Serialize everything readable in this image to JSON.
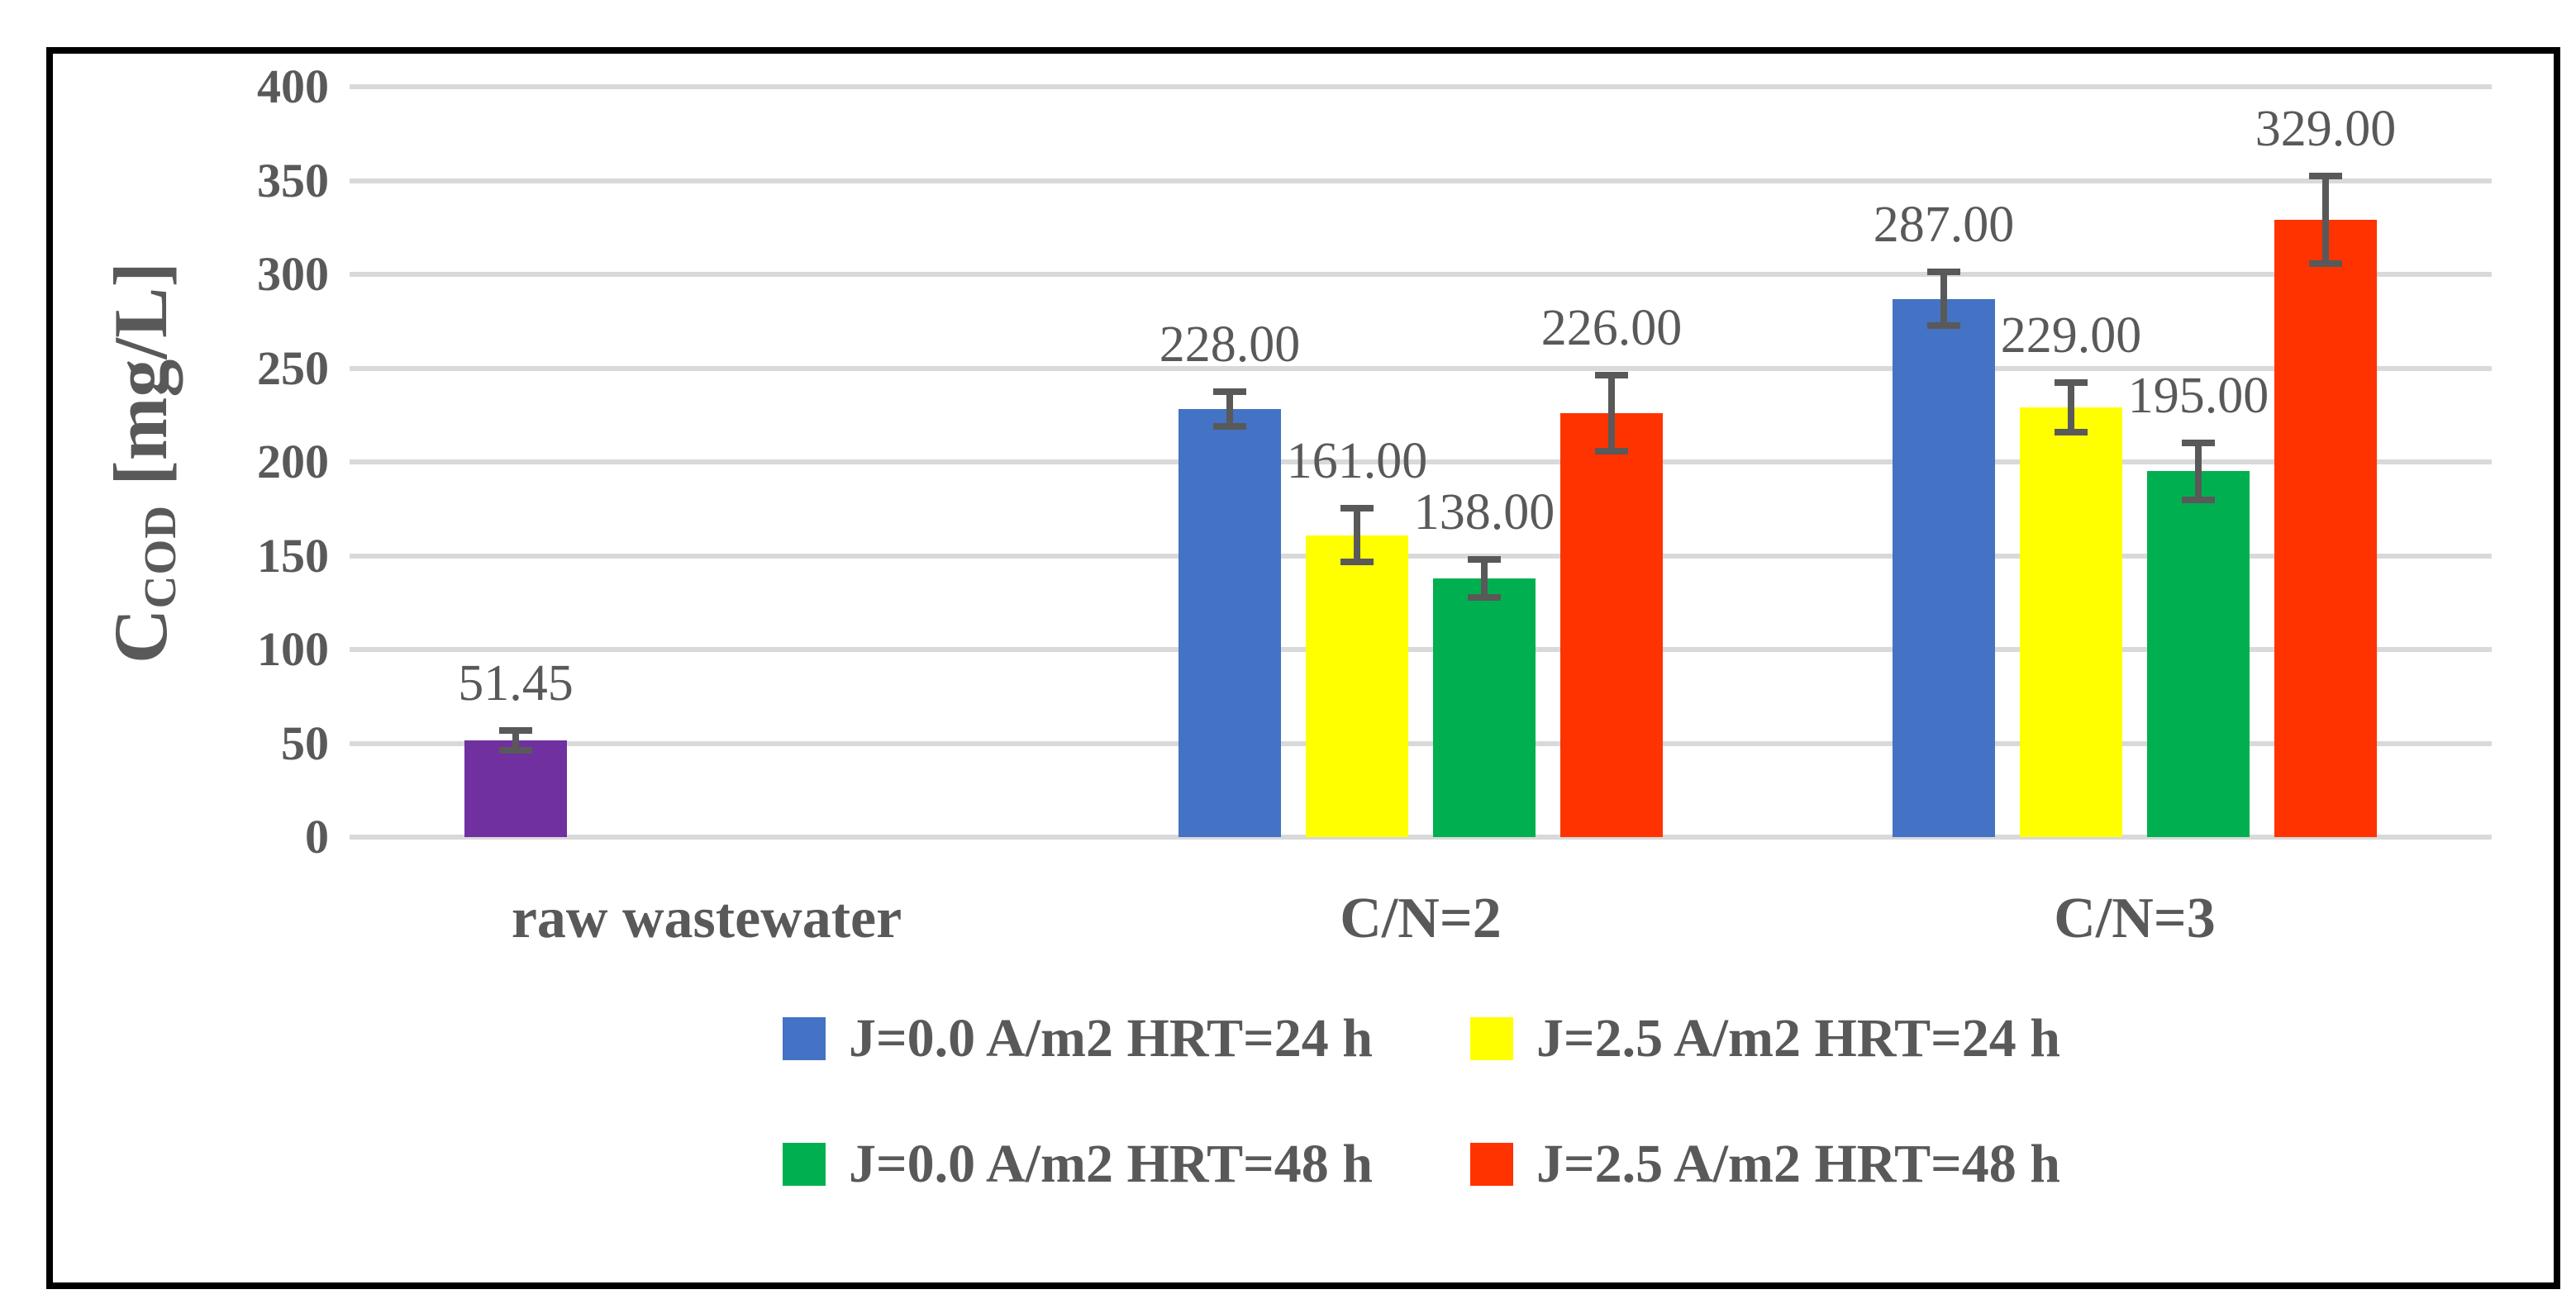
{
  "figure": {
    "background_color": "#FFFFFF",
    "frame_color": "#000000"
  },
  "chart_data": {
    "type": "bar",
    "title": "",
    "ylabel_main": "C",
    "ylabel_sub": "COD",
    "ylabel_unit": " [mg/L]",
    "xlabel": "",
    "ylim": [
      0,
      400
    ],
    "ytick_labels": [
      "0",
      "50",
      "100",
      "150",
      "200",
      "250",
      "300",
      "350",
      "400"
    ],
    "grid": true,
    "gridline_color": "#D9D9D9",
    "text_color": "#595959",
    "error_bar_color": "#595959",
    "legend_position": "bottom",
    "categories": [
      "raw wastewater",
      "C/N=2",
      "C/N=3"
    ],
    "series": [
      {
        "name": "J=0.0 A/m2 HRT=24 h",
        "color": "#4472C4",
        "point_colors": [
          "#7030A0",
          null,
          null
        ],
        "values": [
          51.45,
          228,
          287
        ],
        "errors": [
          7,
          11,
          16
        ],
        "labels": [
          "51.45",
          "228.00",
          "287.00"
        ]
      },
      {
        "name": "J=2.5 A/m2 HRT=24 h",
        "color": "#FFFF00",
        "point_colors": [
          null,
          null,
          null
        ],
        "values": [
          null,
          161,
          229
        ],
        "errors": [
          null,
          16,
          15
        ],
        "labels": [
          null,
          "161.00",
          "229.00"
        ]
      },
      {
        "name": "J=0.0 A/m2 HRT=48 h",
        "color": "#00B050",
        "point_colors": [
          null,
          null,
          null
        ],
        "values": [
          null,
          138,
          195
        ],
        "errors": [
          null,
          12,
          17
        ],
        "labels": [
          null,
          "138.00",
          "195.00"
        ]
      },
      {
        "name": "J=2.5 A/m2 HRT=48 h",
        "color": "#FF3300",
        "point_colors": [
          null,
          null,
          null
        ],
        "values": [
          null,
          226,
          329
        ],
        "errors": [
          null,
          22,
          25
        ],
        "labels": [
          null,
          "226.00",
          "329.00"
        ]
      }
    ]
  }
}
